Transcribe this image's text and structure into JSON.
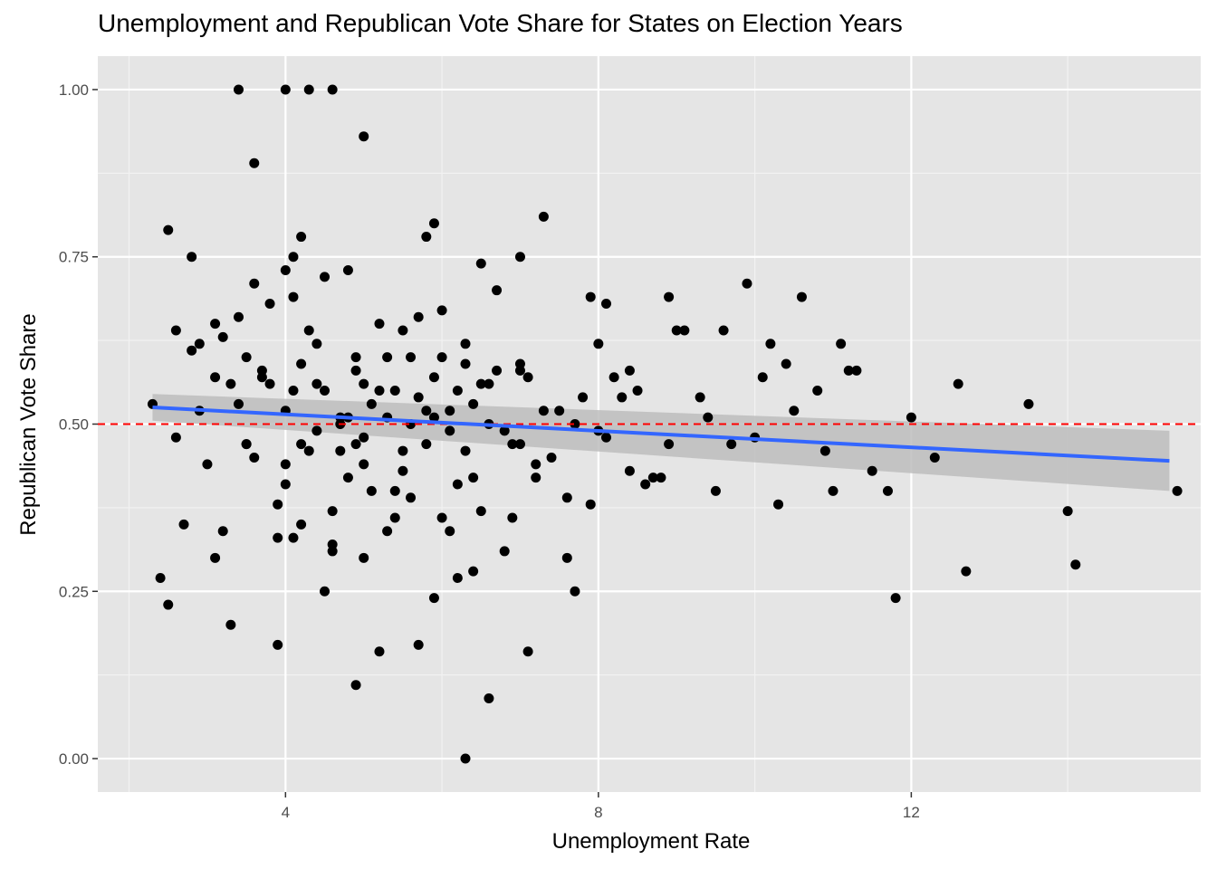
{
  "chart_data": {
    "type": "scatter",
    "title": "Unemployment and Republican Vote Share for States on Election Years",
    "xlabel": "Unemployment Rate",
    "ylabel": "Republican Vote Share",
    "xlim": [
      1.6,
      15.7
    ],
    "ylim": [
      -0.05,
      1.05
    ],
    "x_ticks": [
      4,
      8,
      12
    ],
    "x_tick_labels": [
      "4",
      "8",
      "12"
    ],
    "y_ticks": [
      0,
      0.25,
      0.5,
      0.75,
      1.0
    ],
    "y_tick_labels": [
      "0.00",
      "0.25",
      "0.50",
      "0.75",
      "1.00"
    ],
    "grid": true,
    "panel_background": "#e5e5e5",
    "point_color": "#000000",
    "reference_line": {
      "y": 0.5,
      "style": "dashed",
      "color": "#ff0000"
    },
    "trend_line": {
      "color": "#3366ff",
      "band_color": "#bdbdbd",
      "x": [
        2.3,
        15.3
      ],
      "y": [
        0.525,
        0.445
      ],
      "band_lower": [
        0.505,
        0.4
      ],
      "band_upper": [
        0.545,
        0.49
      ]
    },
    "points": {
      "x": [
        3.4,
        4.0,
        4.3,
        4.6,
        5.0,
        3.6,
        2.5,
        2.8,
        5.9,
        5.8,
        7.3,
        6.5,
        7.0,
        4.1,
        4.2,
        4.0,
        4.5,
        4.8,
        4.1,
        3.6,
        3.8,
        3.4,
        2.6,
        3.1,
        6.0,
        8.9,
        8.1,
        7.9,
        8.4,
        9.9,
        10.6,
        11.1,
        10.2,
        9.6,
        11.2,
        12.6,
        13.5,
        12.0,
        11.8,
        12.7,
        14.0,
        14.1,
        15.4,
        6.6,
        6.3,
        7.1,
        5.0,
        5.2,
        4.5,
        4.9,
        3.9,
        3.3,
        3.1,
        2.5,
        2.4,
        5.7,
        5.9,
        6.2,
        6.4,
        7.7,
        7.6,
        2.3,
        2.9,
        3.2,
        3.5,
        4.7,
        5.4,
        6.1,
        6.8,
        7.5,
        8.5,
        9.3,
        10.0,
        10.8,
        11.5,
        2.6,
        2.7,
        3.2,
        3.9,
        4.2,
        4.6,
        5.1,
        5.6,
        6.5,
        7.2,
        7.9,
        8.7,
        9.5,
        10.3,
        11.0,
        11.7,
        12.3,
        5.3,
        4.4,
        6.0,
        6.7,
        3.7,
        4.9,
        5.5,
        6.3,
        7.0,
        8.2,
        9.0,
        10.4,
        4.3,
        4.7,
        5.8,
        6.9,
        3.0,
        3.6,
        4.0,
        5.0,
        5.5,
        6.4,
        7.4,
        8.8,
        3.3,
        3.8,
        4.1,
        4.5,
        5.2,
        5.7,
        6.2,
        6.6,
        7.1,
        7.8,
        8.3,
        9.7,
        10.9,
        4.8,
        5.3,
        5.9,
        6.6,
        4.4,
        5.0,
        5.6,
        6.1,
        2.8,
        3.5,
        4.2,
        4.9,
        5.6,
        6.3,
        7.0,
        8.0,
        9.1,
        10.1,
        11.3,
        3.9,
        4.6,
        5.4,
        6.0,
        6.9,
        7.6,
        8.6,
        2.9,
        3.4,
        4.0,
        4.7,
        5.1,
        5.8,
        6.4,
        7.3,
        8.1,
        9.4,
        10.5,
        5.2,
        6.7,
        4.3,
        5.7,
        4.0,
        4.8,
        5.4,
        6.2,
        7.2,
        8.4,
        3.1,
        3.7,
        4.4,
        5.0,
        5.9,
        6.5,
        7.7,
        4.1,
        4.6,
        5.3,
        6.1,
        6.8,
        3.5,
        4.2,
        4.9,
        5.5,
        6.3,
        7.0,
        8.0,
        8.9
      ],
      "y": [
        1.0,
        1.0,
        1.0,
        1.0,
        0.93,
        0.89,
        0.79,
        0.75,
        0.8,
        0.78,
        0.81,
        0.74,
        0.75,
        0.75,
        0.78,
        0.73,
        0.72,
        0.73,
        0.69,
        0.71,
        0.68,
        0.66,
        0.64,
        0.65,
        0.67,
        0.69,
        0.68,
        0.69,
        0.58,
        0.71,
        0.69,
        0.62,
        0.62,
        0.64,
        0.58,
        0.56,
        0.53,
        0.51,
        0.24,
        0.28,
        0.37,
        0.29,
        0.4,
        0.09,
        0.0,
        0.16,
        0.3,
        0.16,
        0.25,
        0.11,
        0.17,
        0.2,
        0.3,
        0.23,
        0.27,
        0.17,
        0.24,
        0.27,
        0.28,
        0.25,
        0.3,
        0.53,
        0.62,
        0.63,
        0.47,
        0.5,
        0.55,
        0.52,
        0.49,
        0.52,
        0.55,
        0.54,
        0.48,
        0.55,
        0.43,
        0.48,
        0.35,
        0.34,
        0.33,
        0.35,
        0.31,
        0.4,
        0.39,
        0.37,
        0.44,
        0.38,
        0.42,
        0.4,
        0.38,
        0.4,
        0.4,
        0.45,
        0.6,
        0.62,
        0.6,
        0.58,
        0.58,
        0.58,
        0.64,
        0.62,
        0.58,
        0.57,
        0.64,
        0.59,
        0.46,
        0.46,
        0.47,
        0.47,
        0.44,
        0.45,
        0.44,
        0.44,
        0.43,
        0.42,
        0.45,
        0.42,
        0.56,
        0.56,
        0.55,
        0.55,
        0.55,
        0.54,
        0.55,
        0.56,
        0.57,
        0.54,
        0.54,
        0.47,
        0.46,
        0.51,
        0.51,
        0.51,
        0.5,
        0.49,
        0.48,
        0.5,
        0.49,
        0.61,
        0.6,
        0.59,
        0.6,
        0.6,
        0.59,
        0.59,
        0.62,
        0.64,
        0.57,
        0.58,
        0.38,
        0.37,
        0.36,
        0.36,
        0.36,
        0.39,
        0.41,
        0.52,
        0.53,
        0.52,
        0.51,
        0.53,
        0.52,
        0.53,
        0.52,
        0.48,
        0.51,
        0.52,
        0.65,
        0.7,
        0.64,
        0.66,
        0.41,
        0.42,
        0.4,
        0.41,
        0.42,
        0.43,
        0.57,
        0.57,
        0.56,
        0.56,
        0.57,
        0.56,
        0.5,
        0.33,
        0.32,
        0.34,
        0.34,
        0.31,
        0.47,
        0.47,
        0.47,
        0.46,
        0.46,
        0.47,
        0.49,
        0.47
      ]
    }
  }
}
